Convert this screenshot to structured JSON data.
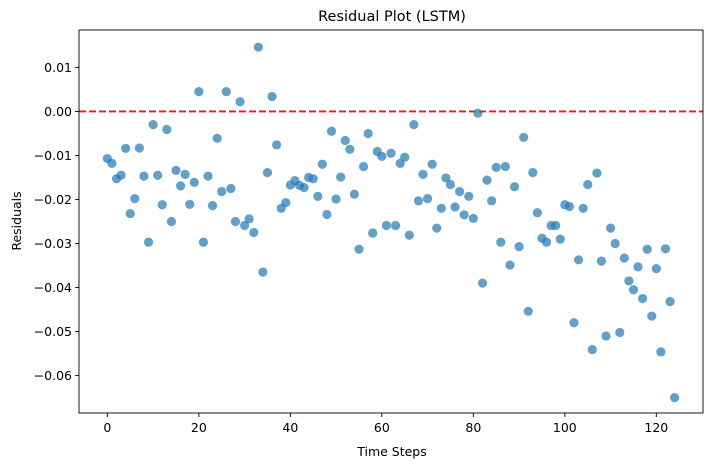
{
  "chart_data": {
    "type": "scatter",
    "title": "Residual Plot (LSTM)",
    "xlabel": "Time Steps",
    "ylabel": "Residuals",
    "xlim": [
      -6.2,
      130.2
    ],
    "ylim": [
      -0.0685,
      0.0185
    ],
    "x_ticks": [
      0,
      20,
      40,
      60,
      80,
      100,
      120
    ],
    "y_ticks": [
      0.01,
      0.0,
      -0.01,
      -0.02,
      -0.03,
      -0.04,
      -0.05,
      -0.06
    ],
    "y_tick_labels": [
      "0.01",
      "0.00",
      "−0.01",
      "−0.02",
      "−0.03",
      "−0.04",
      "−0.05",
      "−0.06"
    ],
    "grid": false,
    "point_color": "#1f77b4",
    "point_alpha": 0.7,
    "reference_line": {
      "y": 0.0,
      "color": "#e41a1c",
      "style": "dashed"
    },
    "series": [
      {
        "x": [
          0,
          1,
          2,
          3,
          4,
          5,
          6,
          7,
          8,
          9,
          10,
          11,
          12,
          13,
          14,
          15,
          16,
          17,
          18,
          19,
          20,
          21,
          22,
          23,
          24,
          25,
          26,
          27,
          28,
          29,
          30,
          31,
          32,
          33,
          34,
          35,
          36,
          37,
          38,
          39,
          40,
          41,
          42,
          43,
          44,
          45,
          46,
          47,
          48,
          49,
          50,
          51,
          52,
          53,
          54,
          55,
          56,
          57,
          58,
          59,
          60,
          61,
          62,
          63,
          64,
          65,
          66,
          67,
          68,
          69,
          70,
          71,
          72,
          73,
          74,
          75,
          76,
          77,
          78,
          79,
          80,
          81,
          82,
          83,
          84,
          85,
          86,
          87,
          88,
          89,
          90,
          91,
          92,
          93,
          94,
          95,
          96,
          97,
          98,
          99,
          100,
          101,
          102,
          103,
          104,
          105,
          106,
          107,
          108,
          109,
          110,
          111,
          112,
          113,
          114,
          115,
          116,
          117,
          118,
          119,
          120,
          121,
          122,
          123,
          124
        ],
        "y": [
          -0.0107,
          -0.0118,
          -0.0153,
          -0.0145,
          -0.0084,
          -0.0232,
          -0.0198,
          -0.0083,
          -0.0147,
          -0.0297,
          -0.003,
          -0.0145,
          -0.0212,
          -0.0041,
          -0.025,
          -0.0134,
          -0.0169,
          -0.0143,
          -0.0211,
          -0.0161,
          0.0045,
          -0.0297,
          -0.0147,
          -0.0214,
          -0.0061,
          -0.0182,
          0.0045,
          -0.0175,
          -0.025,
          0.0022,
          -0.0259,
          -0.0244,
          -0.0275,
          0.0146,
          -0.0365,
          -0.0139,
          0.0034,
          -0.0076,
          -0.022,
          -0.0207,
          -0.0167,
          -0.0157,
          -0.0168,
          -0.0173,
          -0.015,
          -0.0153,
          -0.0193,
          -0.012,
          -0.0234,
          -0.0045,
          -0.0199,
          -0.0149,
          -0.0066,
          -0.0086,
          -0.0188,
          -0.0313,
          -0.0125,
          -0.005,
          -0.0276,
          -0.0091,
          -0.0102,
          -0.0259,
          -0.0095,
          -0.0259,
          -0.0118,
          -0.0104,
          -0.0281,
          -0.003,
          -0.0203,
          -0.0143,
          -0.0198,
          -0.012,
          -0.0265,
          -0.022,
          -0.0151,
          -0.0166,
          -0.0217,
          -0.0182,
          -0.0235,
          -0.0193,
          -0.0243,
          -0.0004,
          -0.039,
          -0.0156,
          -0.0203,
          -0.0127,
          -0.0297,
          -0.0125,
          -0.0349,
          -0.0171,
          -0.0307,
          -0.0059,
          -0.0454,
          -0.0139,
          -0.023,
          -0.0288,
          -0.0297,
          -0.0259,
          -0.0259,
          -0.029,
          -0.0212,
          -0.0216,
          -0.048,
          -0.0337,
          -0.022,
          -0.0166,
          -0.0541,
          -0.014,
          -0.034,
          -0.051,
          -0.0265,
          -0.03,
          -0.0502,
          -0.0333,
          -0.0385,
          -0.0405,
          -0.0353,
          -0.0425,
          -0.0313,
          -0.0465,
          -0.0357,
          -0.0546,
          -0.0312,
          -0.0432,
          -0.065
        ]
      }
    ]
  }
}
